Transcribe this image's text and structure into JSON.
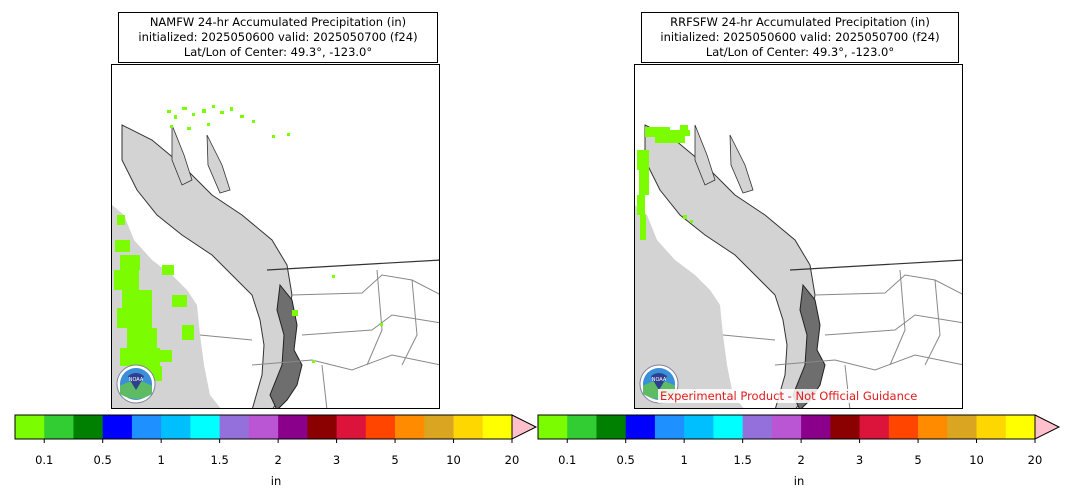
{
  "legend": {
    "ticks": [
      "0.1",
      "0.5",
      "1",
      "1.5",
      "2",
      "3",
      "5",
      "10",
      "20"
    ],
    "unit": "in",
    "colors": [
      "#7cfc00",
      "#32cd32",
      "#008000",
      "#0000ff",
      "#1e90ff",
      "#00bfff",
      "#00ffff",
      "#9370db",
      "#ba55d3",
      "#8b008b",
      "#8b0000",
      "#dc143c",
      "#ff4500",
      "#ff8c00",
      "#daa520",
      "#ffd700",
      "#ffff00"
    ],
    "extend_color": "#ffc0cb"
  },
  "panels": [
    {
      "title": "NAMFW 24-hr Accumulated Precipitation (in)",
      "init_line": "initialized: 2025050600 valid: 2025050700 (f24)",
      "center_line": "Lat/Lon of Center: 49.3°, -123.0°",
      "logo_text": "NOAA",
      "experimental_label": ""
    },
    {
      "title": "RRFSFW 24-hr Accumulated Precipitation (in)",
      "init_line": "initialized: 2025050600 valid: 2025050700 (f24)",
      "center_line": "Lat/Lon of Center: 49.3°, -123.0°",
      "logo_text": "NOAA",
      "experimental_label": "Experimental Product - Not Official Guidance"
    }
  ]
}
